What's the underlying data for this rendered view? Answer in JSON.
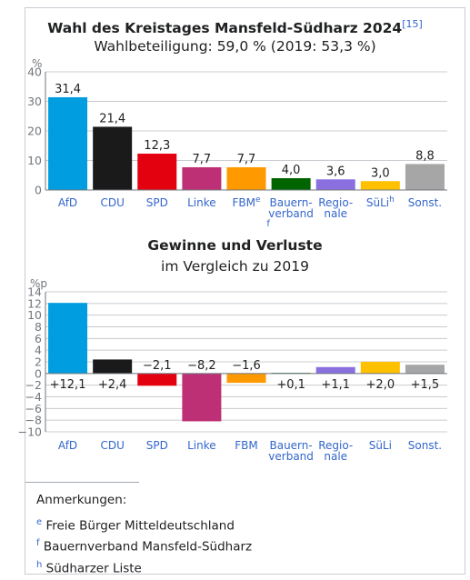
{
  "header": {
    "title": "Wahl des Kreistages Mansfeld-Südharz 2024",
    "footnote_ref": "[15]",
    "subtitle": "Wahlbeteiligung: 59,0 % (2019: 53,3 %)"
  },
  "chart_data": [
    {
      "type": "bar",
      "ylabel": "%",
      "ylim": [
        0,
        40
      ],
      "yticks": [
        0,
        10,
        20,
        30,
        40
      ],
      "categories": [
        "AfD",
        "CDU",
        "SPD",
        "Linke",
        "FBM",
        "Bauern-verband",
        "Regio-nale",
        "SüLi",
        "Sonst."
      ],
      "category_lines": [
        [
          "AfD"
        ],
        [
          "CDU"
        ],
        [
          "SPD"
        ],
        [
          "Linke"
        ],
        [
          "FBM"
        ],
        [
          "Bauern-",
          "verband"
        ],
        [
          "Regio-",
          "nale"
        ],
        [
          "SüLi"
        ],
        [
          "Sonst."
        ]
      ],
      "category_sup": [
        "",
        "",
        "",
        "",
        "e",
        "f",
        "",
        "h",
        ""
      ],
      "values": [
        31.4,
        21.4,
        12.3,
        7.7,
        7.7,
        4.0,
        3.6,
        3.0,
        8.8
      ],
      "value_labels": [
        "31,4",
        "21,4",
        "12,3",
        "7,7",
        "7,7",
        "4,0",
        "3,6",
        "3,0",
        "8,8"
      ],
      "colors": [
        "#009ee0",
        "#1a1a1a",
        "#e3000f",
        "#be3075",
        "#ff9900",
        "#006400",
        "#8a6fe0",
        "#ffc000",
        "#a6a6a6"
      ]
    },
    {
      "type": "bar",
      "title": "Gewinne und Verluste",
      "subtitle": "im Vergleich zu 2019",
      "ylabel": "%p",
      "ylim": [
        -10,
        14
      ],
      "yticks": [
        14,
        12,
        10,
        8,
        6,
        4,
        2,
        0,
        -2,
        -4,
        -6,
        -8,
        -10
      ],
      "ytick_labels": [
        "14",
        "12",
        "10",
        "8",
        "6",
        "4",
        "2",
        "0",
        "−2",
        "−4",
        "−6",
        "−8",
        "−10"
      ],
      "categories": [
        "AfD",
        "CDU",
        "SPD",
        "Linke",
        "FBM",
        "Bauern-verband",
        "Regio-nale",
        "SüLi",
        "Sonst."
      ],
      "category_lines": [
        [
          "AfD"
        ],
        [
          "CDU"
        ],
        [
          "SPD"
        ],
        [
          "Linke"
        ],
        [
          "FBM"
        ],
        [
          "Bauern-",
          "verband"
        ],
        [
          "Regio-",
          "nale"
        ],
        [
          "SüLi"
        ],
        [
          "Sonst."
        ]
      ],
      "values": [
        12.1,
        2.4,
        -2.1,
        -8.2,
        -1.6,
        0.1,
        1.1,
        2.0,
        1.5
      ],
      "value_labels": [
        "+12,1",
        "+2,4",
        "−2,1",
        "−8,2",
        "−1,6",
        "+0,1",
        "+1,1",
        "+2,0",
        "+1,5"
      ],
      "colors": [
        "#009ee0",
        "#1a1a1a",
        "#e3000f",
        "#be3075",
        "#ff9900",
        "#006400",
        "#8a6fe0",
        "#ffc000",
        "#a6a6a6"
      ]
    }
  ],
  "notes": {
    "heading": "Anmerkungen:",
    "items": [
      {
        "mark": "e",
        "text": "Freie Bürger Mitteldeutschland"
      },
      {
        "mark": "f",
        "text": "Bauernverband Mansfeld-Südharz"
      },
      {
        "mark": "h",
        "text": "Südharzer Liste"
      }
    ]
  }
}
